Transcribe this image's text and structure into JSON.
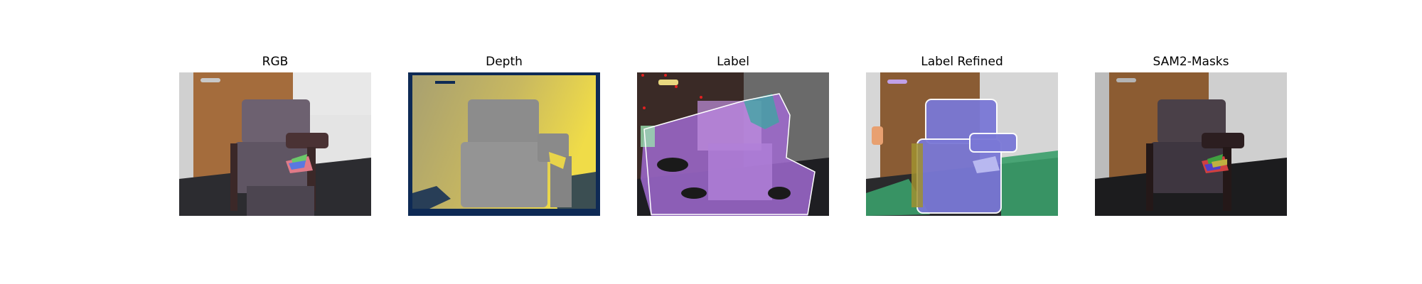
{
  "panels": [
    {
      "id": "rgb",
      "title": "RGB"
    },
    {
      "id": "depth",
      "title": "Depth"
    },
    {
      "id": "label",
      "title": "Label"
    },
    {
      "id": "label-refined",
      "title": "Label Refined"
    },
    {
      "id": "sam2",
      "title": "SAM2-Masks"
    }
  ],
  "colors": {
    "door": "#a06a3c",
    "wall": "#e6e6e6",
    "chair": "#6b6068",
    "floor": "#2a2a2c",
    "depth_far": "#e8d44a",
    "depth_mid": "#c8b860",
    "depth_chair": "#8f8f8f",
    "depth_border": "#0e2a55",
    "label_purple": "#a06ad0",
    "label_teal": "#3aa8a0",
    "refined_blue": "#7a78d6",
    "refined_green": "#3a9e6a"
  }
}
